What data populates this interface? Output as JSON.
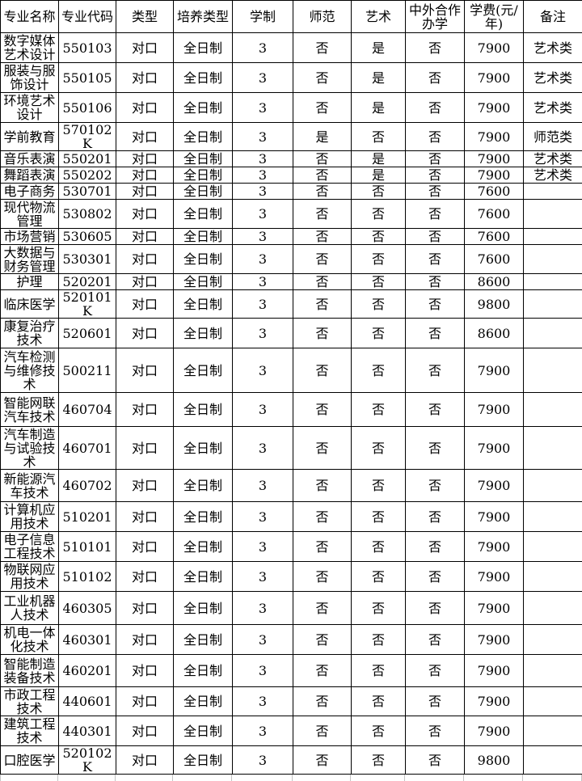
{
  "table": {
    "columns": [
      "专业名称",
      "专业代码",
      "类型",
      "培养类型",
      "学制",
      "师范",
      "艺术",
      "中外合作办学",
      "学费(元/年)",
      "备注"
    ],
    "rows": [
      {
        "name": "数字媒体艺术设计",
        "code": "550103",
        "type": "对口",
        "mode": "全日制",
        "years": "3",
        "normal": "否",
        "art": "是",
        "joint": "否",
        "fee": "7900",
        "note": "艺术类"
      },
      {
        "name": "服装与服饰设计",
        "code": "550105",
        "type": "对口",
        "mode": "全日制",
        "years": "3",
        "normal": "否",
        "art": "是",
        "joint": "否",
        "fee": "7900",
        "note": "艺术类"
      },
      {
        "name": "环境艺术设计",
        "code": "550106",
        "type": "对口",
        "mode": "全日制",
        "years": "3",
        "normal": "否",
        "art": "是",
        "joint": "否",
        "fee": "7900",
        "note": "艺术类"
      },
      {
        "name": "学前教育",
        "code": "570102K",
        "type": "对口",
        "mode": "全日制",
        "years": "3",
        "normal": "是",
        "art": "否",
        "joint": "否",
        "fee": "7900",
        "note": "师范类"
      },
      {
        "name": "音乐表演",
        "code": "550201",
        "type": "对口",
        "mode": "全日制",
        "years": "3",
        "normal": "否",
        "art": "是",
        "joint": "否",
        "fee": "7900",
        "note": "艺术类"
      },
      {
        "name": "舞蹈表演",
        "code": "550202",
        "type": "对口",
        "mode": "全日制",
        "years": "3",
        "normal": "否",
        "art": "是",
        "joint": "否",
        "fee": "7900",
        "note": "艺术类"
      },
      {
        "name": "电子商务",
        "code": "530701",
        "type": "对口",
        "mode": "全日制",
        "years": "3",
        "normal": "否",
        "art": "否",
        "joint": "否",
        "fee": "7600",
        "note": ""
      },
      {
        "name": "现代物流管理",
        "code": "530802",
        "type": "对口",
        "mode": "全日制",
        "years": "3",
        "normal": "否",
        "art": "否",
        "joint": "否",
        "fee": "7600",
        "note": ""
      },
      {
        "name": "市场营销",
        "code": "530605",
        "type": "对口",
        "mode": "全日制",
        "years": "3",
        "normal": "否",
        "art": "否",
        "joint": "否",
        "fee": "7600",
        "note": ""
      },
      {
        "name": "大数据与财务管理",
        "code": "530301",
        "type": "对口",
        "mode": "全日制",
        "years": "3",
        "normal": "否",
        "art": "否",
        "joint": "否",
        "fee": "7600",
        "note": ""
      },
      {
        "name": "护理",
        "code": "520201",
        "type": "对口",
        "mode": "全日制",
        "years": "3",
        "normal": "否",
        "art": "否",
        "joint": "否",
        "fee": "8600",
        "note": ""
      },
      {
        "name": "临床医学",
        "code": "520101K",
        "type": "对口",
        "mode": "全日制",
        "years": "3",
        "normal": "否",
        "art": "否",
        "joint": "否",
        "fee": "9800",
        "note": ""
      },
      {
        "name": "康复治疗技术",
        "code": "520601",
        "type": "对口",
        "mode": "全日制",
        "years": "3",
        "normal": "否",
        "art": "否",
        "joint": "否",
        "fee": "8600",
        "note": ""
      },
      {
        "name": "汽车检测与维修技术",
        "code": "500211",
        "type": "对口",
        "mode": "全日制",
        "years": "3",
        "normal": "否",
        "art": "否",
        "joint": "否",
        "fee": "7900",
        "note": ""
      },
      {
        "name": "智能网联汽车技术",
        "code": "460704",
        "type": "对口",
        "mode": "全日制",
        "years": "3",
        "normal": "否",
        "art": "否",
        "joint": "否",
        "fee": "7900",
        "note": ""
      },
      {
        "name": "汽车制造与试验技术",
        "code": "460701",
        "type": "对口",
        "mode": "全日制",
        "years": "3",
        "normal": "否",
        "art": "否",
        "joint": "否",
        "fee": "7900",
        "note": ""
      },
      {
        "name": "新能源汽车技术",
        "code": "460702",
        "type": "对口",
        "mode": "全日制",
        "years": "3",
        "normal": "否",
        "art": "否",
        "joint": "否",
        "fee": "7900",
        "note": ""
      },
      {
        "name": "计算机应用技术",
        "code": "510201",
        "type": "对口",
        "mode": "全日制",
        "years": "3",
        "normal": "否",
        "art": "否",
        "joint": "否",
        "fee": "7900",
        "note": ""
      },
      {
        "name": "电子信息工程技术",
        "code": "510101",
        "type": "对口",
        "mode": "全日制",
        "years": "3",
        "normal": "否",
        "art": "否",
        "joint": "否",
        "fee": "7900",
        "note": ""
      },
      {
        "name": "物联网应用技术",
        "code": "510102",
        "type": "对口",
        "mode": "全日制",
        "years": "3",
        "normal": "否",
        "art": "否",
        "joint": "否",
        "fee": "7900",
        "note": ""
      },
      {
        "name": "工业机器人技术",
        "code": "460305",
        "type": "对口",
        "mode": "全日制",
        "years": "3",
        "normal": "否",
        "art": "否",
        "joint": "否",
        "fee": "7900",
        "note": ""
      },
      {
        "name": "机电一体化技术",
        "code": "460301",
        "type": "对口",
        "mode": "全日制",
        "years": "3",
        "normal": "否",
        "art": "否",
        "joint": "否",
        "fee": "7900",
        "note": ""
      },
      {
        "name": "智能制造装备技术",
        "code": "460201",
        "type": "对口",
        "mode": "全日制",
        "years": "3",
        "normal": "否",
        "art": "否",
        "joint": "否",
        "fee": "7900",
        "note": ""
      },
      {
        "name": "市政工程技术",
        "code": "440601",
        "type": "对口",
        "mode": "全日制",
        "years": "3",
        "normal": "否",
        "art": "否",
        "joint": "否",
        "fee": "7900",
        "note": ""
      },
      {
        "name": "建筑工程技术",
        "code": "440301",
        "type": "对口",
        "mode": "全日制",
        "years": "3",
        "normal": "否",
        "art": "否",
        "joint": "否",
        "fee": "7900",
        "note": ""
      },
      {
        "name": "口腔医学",
        "code": "520102K",
        "type": "对口",
        "mode": "全日制",
        "years": "3",
        "normal": "否",
        "art": "否",
        "joint": "否",
        "fee": "9800",
        "note": ""
      }
    ]
  }
}
